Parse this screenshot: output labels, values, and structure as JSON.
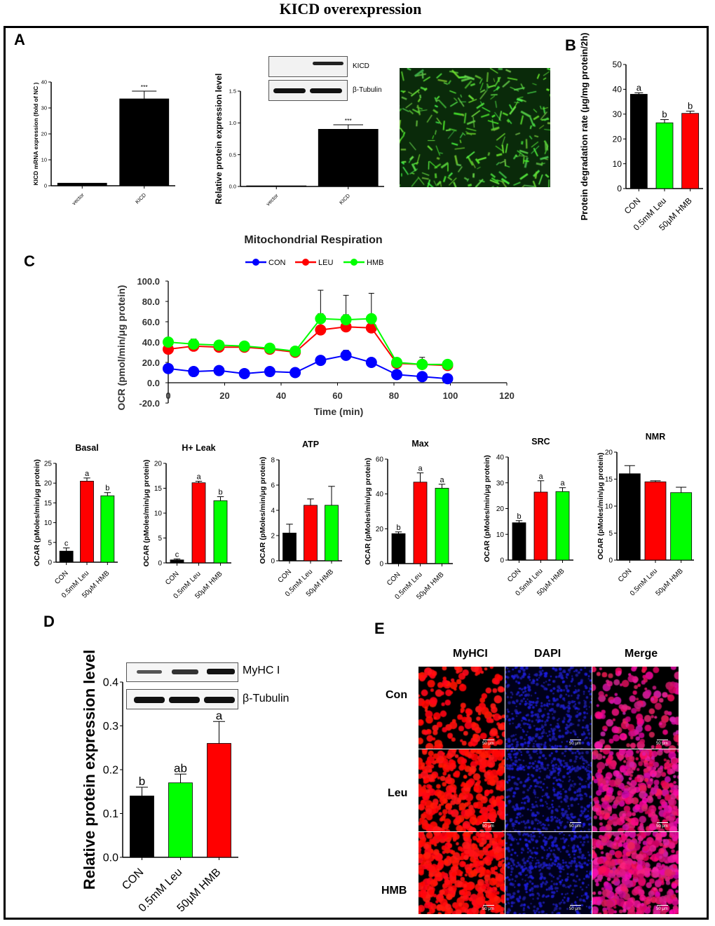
{
  "title": "KICD overexpression",
  "panels": {
    "A": "A",
    "B": "B",
    "C": "C",
    "D": "D",
    "E": "E"
  },
  "blots_A": {
    "band1": "KICD",
    "band2": "β-Tubulin"
  },
  "blots_D": {
    "band1": "MyHC I",
    "band2": "β-Tubulin"
  },
  "panel_E": {
    "columns": [
      "MyHCI",
      "DAPI",
      "Merge"
    ],
    "rows": [
      "Con",
      "Leu",
      "HMB"
    ],
    "scale_bar": "50 μm"
  },
  "colors": {
    "black": "#000000",
    "red": "#ff0000",
    "green": "#00ff00",
    "blue": "#0000ff"
  },
  "chart_data": [
    {
      "id": "A1",
      "type": "bar",
      "title": "",
      "ylabel": "KICD mRNA expression (fold of NC )",
      "categories": [
        "vector",
        "KICD"
      ],
      "values": [
        1,
        33.5
      ],
      "errors": [
        0,
        3
      ],
      "labels": [
        "",
        "***"
      ],
      "colors": [
        "#000000",
        "#000000"
      ],
      "ylim": [
        0,
        40
      ],
      "yticks": [
        0,
        10,
        20,
        30,
        40
      ]
    },
    {
      "id": "A2",
      "type": "bar",
      "title": "",
      "ylabel": "Relative protein expression level",
      "categories": [
        "vector",
        "KICD"
      ],
      "values": [
        0.01,
        0.9
      ],
      "errors": [
        0,
        0.07
      ],
      "labels": [
        "",
        "***"
      ],
      "colors": [
        "#000000",
        "#000000"
      ],
      "ylim": [
        0,
        1.5
      ],
      "yticks": [
        "0.0",
        "0.5",
        "1.0",
        "1.5"
      ]
    },
    {
      "id": "B",
      "type": "bar",
      "title": "",
      "ylabel": "Protein degradation rate (μg/mg protein/2h)",
      "categories": [
        "CON",
        "0.5mM Leu",
        "50μM HMB"
      ],
      "values": [
        38,
        26.5,
        30.3
      ],
      "errors": [
        0.6,
        1.3,
        0.9
      ],
      "labels": [
        "a",
        "b",
        "b"
      ],
      "colors": [
        "#000000",
        "#00ff00",
        "#ff0000"
      ],
      "ylim": [
        0,
        50
      ],
      "yticks": [
        0,
        10,
        20,
        30,
        40,
        50
      ]
    },
    {
      "id": "C",
      "type": "line",
      "title": "Mitochondrial Respiration",
      "xlabel": "Time (min)",
      "ylabel": "OCR (pmol/min/μg protein)",
      "xlim": [
        0,
        120
      ],
      "ylim": [
        -20,
        100
      ],
      "xticks": [
        0,
        20,
        40,
        60,
        80,
        100,
        120
      ],
      "yticks": [
        "-20.0",
        "0.0",
        "20.0",
        "40.0",
        "60.0",
        "80.0",
        "100.0"
      ],
      "x": [
        0,
        9,
        18,
        27,
        36,
        45,
        54,
        63,
        72,
        81,
        90,
        99
      ],
      "series": [
        {
          "name": "CON",
          "color": "#0000ff",
          "values": [
            14,
            11,
            12,
            9,
            11,
            10,
            22,
            27,
            20,
            8,
            6,
            4
          ],
          "errors": [
            3,
            2,
            2,
            2,
            2,
            2,
            3,
            5,
            3,
            2,
            2,
            2
          ]
        },
        {
          "name": "LEU",
          "color": "#ff0000",
          "values": [
            33,
            36,
            35,
            35,
            33,
            30,
            52,
            55,
            54,
            19,
            18,
            17
          ],
          "errors": [
            3,
            4,
            3,
            3,
            3,
            3,
            16,
            12,
            10,
            3,
            4,
            3
          ]
        },
        {
          "name": "HMB",
          "color": "#00ff00",
          "values": [
            40,
            38,
            37,
            36,
            34,
            31,
            63,
            62,
            63,
            20,
            18,
            18
          ],
          "errors": [
            3,
            5,
            3,
            3,
            3,
            3,
            28,
            24,
            25,
            3,
            7,
            3
          ]
        }
      ]
    },
    {
      "id": "C1",
      "type": "bar",
      "title": "Basal",
      "ylabel": "OCAR (pMoles/min/μg protein)",
      "categories": [
        "CON",
        "0.5mM Leu",
        "50μM HMB"
      ],
      "values": [
        2.8,
        20.5,
        16.8
      ],
      "errors": [
        0.8,
        0.8,
        0.8
      ],
      "labels": [
        "c",
        "a",
        "b"
      ],
      "colors": [
        "#000000",
        "#ff0000",
        "#00ff00"
      ],
      "ylim": [
        0,
        25
      ],
      "yticks": [
        0,
        5,
        10,
        15,
        20,
        25
      ]
    },
    {
      "id": "C2",
      "type": "bar",
      "title": "H+ Leak",
      "ylabel": "OCAR (pMoles/min/μg protein)",
      "categories": [
        "CON",
        "0.5mM Leu",
        "50μM HMB"
      ],
      "values": [
        0.6,
        16.1,
        12.5
      ],
      "errors": [
        0.2,
        0.3,
        0.8
      ],
      "labels": [
        "c",
        "a",
        "b"
      ],
      "colors": [
        "#000000",
        "#ff0000",
        "#00ff00"
      ],
      "ylim": [
        0,
        20
      ],
      "yticks": [
        0,
        5,
        10,
        15,
        20
      ]
    },
    {
      "id": "C3",
      "type": "bar",
      "title": "ATP",
      "ylabel": "OCAR (pMoles/min/μg protein)",
      "categories": [
        "CON",
        "0.5mM Leu",
        "50μM HMB"
      ],
      "values": [
        2.2,
        4.4,
        4.4
      ],
      "errors": [
        0.7,
        0.5,
        1.5
      ],
      "labels": [
        "",
        "",
        ""
      ],
      "colors": [
        "#000000",
        "#ff0000",
        "#00ff00"
      ],
      "ylim": [
        0,
        8
      ],
      "yticks": [
        0,
        2,
        4,
        6,
        8
      ]
    },
    {
      "id": "C4",
      "type": "bar",
      "title": "Max",
      "ylabel": "OCAR (pMoles/min/μg protein)",
      "categories": [
        "CON",
        "0.5mM Leu",
        "50μM HMB"
      ],
      "values": [
        17.2,
        46.8,
        43.3
      ],
      "errors": [
        1,
        5.3,
        2.3
      ],
      "labels": [
        "b",
        "a",
        "a"
      ],
      "colors": [
        "#000000",
        "#ff0000",
        "#00ff00"
      ],
      "ylim": [
        0,
        60
      ],
      "yticks": [
        0,
        20,
        40,
        60
      ]
    },
    {
      "id": "C5",
      "type": "bar",
      "title": "SRC",
      "ylabel": "OCAR (pMoles/min/μg protein)",
      "categories": [
        "CON",
        "0.5mM Leu",
        "50μM HMB"
      ],
      "values": [
        14.5,
        26.4,
        26.6
      ],
      "errors": [
        0.8,
        4.4,
        1.5
      ],
      "labels": [
        "b",
        "a",
        "a"
      ],
      "colors": [
        "#000000",
        "#ff0000",
        "#00ff00"
      ],
      "ylim": [
        0,
        40
      ],
      "yticks": [
        0,
        10,
        20,
        30,
        40
      ]
    },
    {
      "id": "C6",
      "type": "bar",
      "title": "NMR",
      "ylabel": "OCAR (pMoles/min/μg protein)",
      "categories": [
        "CON",
        "0.5mM Leu",
        "50μM HMB"
      ],
      "values": [
        16,
        14.5,
        12.5
      ],
      "errors": [
        1.5,
        0.2,
        1
      ],
      "labels": [
        "",
        "",
        ""
      ],
      "colors": [
        "#000000",
        "#ff0000",
        "#00ff00"
      ],
      "ylim": [
        0,
        20
      ],
      "yticks": [
        0,
        5,
        10,
        15,
        20
      ]
    },
    {
      "id": "D",
      "type": "bar",
      "title": "",
      "ylabel": "Relative protein expression level",
      "categories": [
        "CON",
        "0.5mM Leu",
        "50μM HMB"
      ],
      "values": [
        0.14,
        0.17,
        0.26
      ],
      "errors": [
        0.02,
        0.02,
        0.05
      ],
      "labels": [
        "b",
        "ab",
        "a"
      ],
      "colors": [
        "#000000",
        "#00ff00",
        "#ff0000"
      ],
      "ylim": [
        0,
        0.4
      ],
      "yticks": [
        "0.0",
        "0.1",
        "0.2",
        "0.3",
        "0.4"
      ]
    }
  ]
}
